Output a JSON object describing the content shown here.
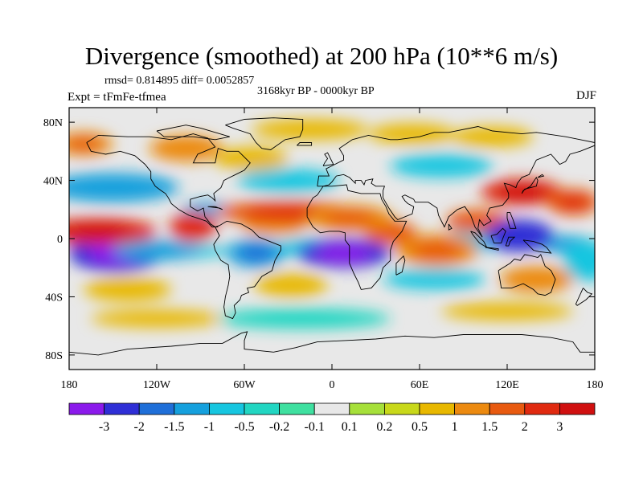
{
  "chart_data": {
    "type": "heatmap",
    "title": "Divergence (smoothed) at 200 hPa (10**6 m/s)",
    "stats_text": "rmsd= 0.814895 diff= 0.0052857",
    "period_text": "3168kyr BP - 0000kyr BP",
    "experiment_text": "Expt = tFmFe-tfmea",
    "season": "DJF",
    "x_range": [
      -180,
      180
    ],
    "y_range": [
      -90,
      90
    ],
    "x_ticks": [
      {
        "value": -180,
        "label": "180"
      },
      {
        "value": -120,
        "label": "120W"
      },
      {
        "value": -60,
        "label": "60W"
      },
      {
        "value": 0,
        "label": "0"
      },
      {
        "value": 60,
        "label": "60E"
      },
      {
        "value": 120,
        "label": "120E"
      },
      {
        "value": 180,
        "label": "180"
      }
    ],
    "y_ticks": [
      {
        "value": 80,
        "label": "80N"
      },
      {
        "value": 40,
        "label": "40N"
      },
      {
        "value": 0,
        "label": "0"
      },
      {
        "value": -40,
        "label": "40S"
      },
      {
        "value": -80,
        "label": "80S"
      }
    ],
    "colorbar": {
      "labels": [
        "-3",
        "-2",
        "-1.5",
        "-1",
        "-0.5",
        "-0.2",
        "-0.1",
        "0.1",
        "0.2",
        "0.5",
        "1",
        "1.5",
        "2",
        "3"
      ],
      "colors": [
        "#8b1aeb",
        "#2f2fd6",
        "#1f6fd8",
        "#15a0dd",
        "#16c6e0",
        "#22d6c2",
        "#3fe0a0",
        "#e8e8e8",
        "#a6e03a",
        "#c8d81a",
        "#e8b800",
        "#ec8a10",
        "#e85a10",
        "#e02a10",
        "#d01010"
      ]
    },
    "features": [
      {
        "name": "tropical-pacific-convergence",
        "lon": -148,
        "lat": -10,
        "value": -3.0
      },
      {
        "name": "east-pacific-convergence",
        "lon": -120,
        "lat": -8,
        "value": -1.2
      },
      {
        "name": "south-america-convergence",
        "lon": -52,
        "lat": -10,
        "value": -1.5
      },
      {
        "name": "south-atlantic-africa-convergence",
        "lon": 8,
        "lat": -10,
        "value": -2.5
      },
      {
        "name": "maritime-continent-convergence",
        "lon": 128,
        "lat": 2,
        "value": -2.2
      },
      {
        "name": "north-pacific-convergence",
        "lon": -150,
        "lat": 35,
        "value": -1.2
      },
      {
        "name": "north-atlantic-convergence",
        "lon": -30,
        "lat": 40,
        "value": -0.7
      },
      {
        "name": "central-asia-convergence",
        "lon": 75,
        "lat": 50,
        "value": -0.6
      },
      {
        "name": "south-indian-convergence",
        "lon": 70,
        "lat": -28,
        "value": -0.6
      },
      {
        "name": "southern-ocean-convergence",
        "lon": -20,
        "lat": -55,
        "value": -0.5
      },
      {
        "name": "pacific-convergence-tongue",
        "lon": 175,
        "lat": -15,
        "value": -0.8
      },
      {
        "name": "north-tropical-pacific-divergence",
        "lon": -160,
        "lat": 5,
        "value": 2.5
      },
      {
        "name": "atlantic-divergence-band",
        "lon": -30,
        "lat": 18,
        "value": 1.8
      },
      {
        "name": "north-africa-divergence",
        "lon": 12,
        "lat": 14,
        "value": 1.4
      },
      {
        "name": "east-asia-divergence",
        "lon": 130,
        "lat": 32,
        "value": 2.5
      },
      {
        "name": "west-pacific-divergence",
        "lon": 165,
        "lat": 25,
        "value": 1.8
      },
      {
        "name": "north-atlantic-divergence",
        "lon": -55,
        "lat": 55,
        "value": 0.8
      },
      {
        "name": "north-america-divergence",
        "lon": -100,
        "lat": 62,
        "value": 1.0
      },
      {
        "name": "north-pacific-high-lat-divergence",
        "lon": -170,
        "lat": 65,
        "value": 1.4
      },
      {
        "name": "arctic-divergence",
        "lon": -15,
        "lat": 75,
        "value": 0.6
      },
      {
        "name": "eurasia-divergence",
        "lon": 55,
        "lat": 72,
        "value": 0.8
      },
      {
        "name": "siberia-divergence",
        "lon": 110,
        "lat": 70,
        "value": 0.8
      },
      {
        "name": "east-pacific-divergence",
        "lon": -95,
        "lat": 8,
        "value": 2.0
      },
      {
        "name": "south-pacific-divergence",
        "lon": -140,
        "lat": -35,
        "value": 0.7
      },
      {
        "name": "south-atlantic-divergence",
        "lon": -28,
        "lat": -32,
        "value": 0.9
      },
      {
        "name": "indian-ocean-divergence",
        "lon": 72,
        "lat": -8,
        "value": 1.4
      },
      {
        "name": "australia-divergence",
        "lon": 140,
        "lat": -28,
        "value": 1.0
      },
      {
        "name": "southern-ocean-divergence-east",
        "lon": 120,
        "lat": -50,
        "value": 0.6
      },
      {
        "name": "southern-ocean-divergence-west",
        "lon": -120,
        "lat": -55,
        "value": 0.5
      }
    ]
  }
}
